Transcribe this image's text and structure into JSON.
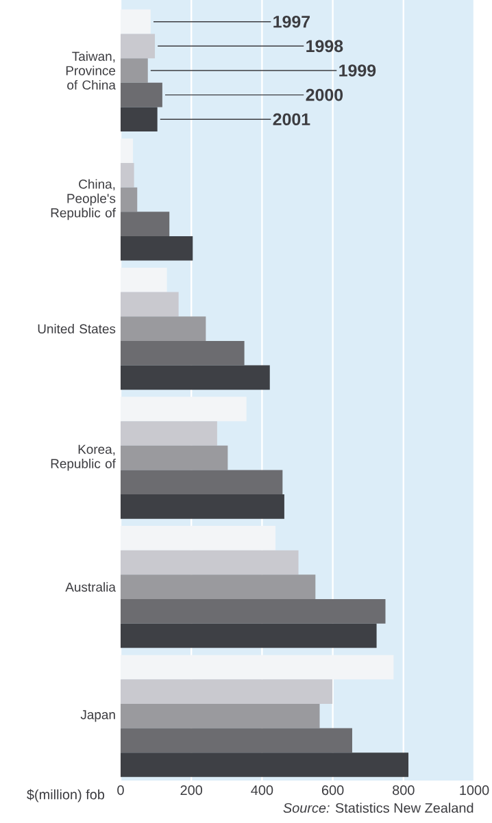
{
  "chart_data": {
    "type": "bar",
    "orientation": "horizontal",
    "categories": [
      "Taiwan, Province of China",
      "China, People's Republic of",
      "United States",
      "Korea, Republic of",
      "Australia",
      "Japan"
    ],
    "series": [
      {
        "name": "1997",
        "color": "#f3f5f7",
        "values": [
          85,
          35,
          131,
          356,
          438,
          772
        ]
      },
      {
        "name": "1998",
        "color": "#c9c9cf",
        "values": [
          97,
          38,
          164,
          273,
          503,
          599
        ]
      },
      {
        "name": "1999",
        "color": "#9a9a9e",
        "values": [
          77,
          47,
          241,
          303,
          551,
          563
        ]
      },
      {
        "name": "2000",
        "color": "#6c6c70",
        "values": [
          118,
          138,
          350,
          458,
          749,
          655
        ]
      },
      {
        "name": "2001",
        "color": "#3e4045",
        "values": [
          104,
          204,
          422,
          463,
          724,
          814
        ]
      }
    ],
    "xlabel": "$(million) fob",
    "xlim": [
      0,
      1000
    ],
    "xticks": [
      0,
      200,
      400,
      600,
      800,
      1000
    ],
    "grid": "x",
    "annotations": [
      "*Source:* Statistics New Zealand"
    ]
  }
}
